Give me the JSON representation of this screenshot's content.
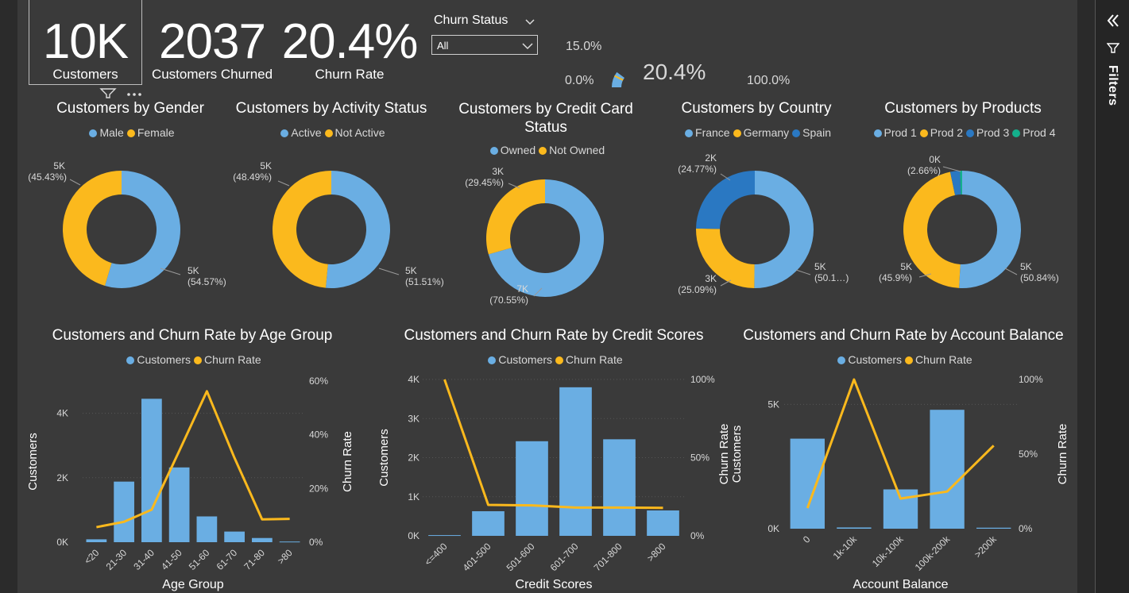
{
  "kpis": {
    "customers": {
      "value": "10K",
      "label": "Customers"
    },
    "churned": {
      "value": "2037",
      "label": "Customers Churned"
    },
    "churn_rate": {
      "value": "20.4%",
      "label": "Churn Rate"
    }
  },
  "slicer": {
    "title": "Churn Status",
    "value": "All"
  },
  "gauge": {
    "min_label": "0.0%",
    "max_label": "100.0%",
    "target_label": "15.0%",
    "value_label": "20.4%",
    "value": 0.204,
    "target": 0.15
  },
  "filters_pane": {
    "label": "Filters"
  },
  "colors": {
    "blue": "#6aaee3",
    "yellow": "#fbb91d",
    "darkblue": "#2a78c2",
    "teal": "#14b08c",
    "bg": "#3a3a3a"
  },
  "chart_data": [
    {
      "type": "pie",
      "title": "Customers by Gender",
      "legend": [
        "Male",
        "Female"
      ],
      "slices": [
        {
          "name": "Male",
          "value": 54.57,
          "label": "5K",
          "pct": "(54.57%)"
        },
        {
          "name": "Female",
          "value": 45.43,
          "label": "5K",
          "pct": "(45.43%)"
        }
      ]
    },
    {
      "type": "pie",
      "title": "Customers by Activity Status",
      "legend": [
        "Active",
        "Not Active"
      ],
      "slices": [
        {
          "name": "Active",
          "value": 51.51,
          "label": "5K",
          "pct": "(51.51%)"
        },
        {
          "name": "Not Active",
          "value": 48.49,
          "label": "5K",
          "pct": "(48.49%)"
        }
      ]
    },
    {
      "type": "pie",
      "title": "Customers by Credit Card Status",
      "legend": [
        "Owned",
        "Not Owned"
      ],
      "slices": [
        {
          "name": "Owned",
          "value": 70.55,
          "label": "7K",
          "pct": "(70.55%)"
        },
        {
          "name": "Not Owned",
          "value": 29.45,
          "label": "3K",
          "pct": "(29.45%)"
        }
      ]
    },
    {
      "type": "pie",
      "title": "Customers by Country",
      "legend": [
        "France",
        "Germany",
        "Spain"
      ],
      "slices": [
        {
          "name": "France",
          "value": 50.14,
          "label": "5K",
          "pct": "(50.1…)"
        },
        {
          "name": "Germany",
          "value": 25.09,
          "label": "3K",
          "pct": "(25.09%)"
        },
        {
          "name": "Spain",
          "value": 24.77,
          "label": "2K",
          "pct": "(24.77%)"
        }
      ]
    },
    {
      "type": "pie",
      "title": "Customers by Products",
      "legend": [
        "Prod 1",
        "Prod 2",
        "Prod 3",
        "Prod 4"
      ],
      "slices": [
        {
          "name": "Prod 1",
          "value": 50.84,
          "label": "5K",
          "pct": "(50.84%)"
        },
        {
          "name": "Prod 2",
          "value": 45.9,
          "label": "5K",
          "pct": "(45.9%)"
        },
        {
          "name": "Prod 3",
          "value": 2.66,
          "label": "0K",
          "pct": "(2.66%)"
        },
        {
          "name": "Prod 4",
          "value": 0.6,
          "label": "",
          "pct": ""
        }
      ]
    },
    {
      "type": "bar",
      "title": "Customers and Churn Rate by Age Group",
      "legend": [
        "Customers",
        "Churn Rate"
      ],
      "xlabel": "Age Group",
      "ylabel": "Customers",
      "y2label": "Churn Rate",
      "categories": [
        "<20",
        "21-30",
        "31-40",
        "41-50",
        "51-60",
        "61-70",
        "71-80",
        ">80"
      ],
      "series": [
        {
          "name": "Customers",
          "values": [
            89,
            1880,
            4450,
            2320,
            800,
            330,
            130,
            20
          ]
        },
        {
          "name": "Churn Rate",
          "values": [
            5.6,
            7.6,
            12.1,
            34.0,
            56.2,
            31.4,
            8.5,
            8.7
          ]
        }
      ],
      "ylim": [
        0,
        5000
      ],
      "y2lim": [
        0,
        60
      ],
      "yticks": [
        {
          "v": 0,
          "t": "0K"
        },
        {
          "v": 2000,
          "t": "2K"
        },
        {
          "v": 4000,
          "t": "4K"
        }
      ],
      "y2ticks": [
        {
          "v": 0,
          "t": "0%"
        },
        {
          "v": 20,
          "t": "20%"
        },
        {
          "v": 40,
          "t": "40%"
        },
        {
          "v": 60,
          "t": "60%"
        }
      ]
    },
    {
      "type": "bar",
      "title": "Customers and Churn Rate by Credit Scores",
      "legend": [
        "Customers",
        "Churn Rate"
      ],
      "xlabel": "Credit Scores",
      "ylabel": "Customers",
      "y2label": "",
      "categories": [
        "<=400",
        "401-500",
        "501-600",
        "601-700",
        "701-800",
        ">800"
      ],
      "series": [
        {
          "name": "Customers",
          "values": [
            19,
            630,
            2420,
            3800,
            2470,
            650
          ]
        },
        {
          "name": "Churn Rate",
          "values": [
            100,
            19.8,
            19.5,
            18.1,
            18.1,
            17.9
          ]
        }
      ],
      "ylim": [
        0,
        4000
      ],
      "y2lim": [
        0,
        100
      ],
      "yticks": [
        {
          "v": 0,
          "t": "0K"
        },
        {
          "v": 1000,
          "t": "1K"
        },
        {
          "v": 2000,
          "t": "2K"
        },
        {
          "v": 3000,
          "t": "3K"
        },
        {
          "v": 4000,
          "t": "4K"
        }
      ],
      "y2ticks": [
        {
          "v": 0,
          "t": "0%"
        },
        {
          "v": 50,
          "t": "50%"
        },
        {
          "v": 100,
          "t": "100%"
        }
      ]
    },
    {
      "type": "bar",
      "title": "Customers and Churn Rate by Account Balance",
      "legend": [
        "Customers",
        "Churn Rate"
      ],
      "xlabel": "Account Balance",
      "ylabel": "Churn Rate Customers",
      "y2label": "Churn Rate",
      "categories": [
        "0",
        "1k-10k",
        "10k-100k",
        "100k-200k",
        ">200k"
      ],
      "series": [
        {
          "name": "Customers",
          "values": [
            3620,
            50,
            1580,
            4780,
            40
          ]
        },
        {
          "name": "Churn Rate",
          "values": [
            13.8,
            100,
            20.2,
            24.9,
            55.7
          ]
        }
      ],
      "ylim": [
        0,
        6000
      ],
      "y2lim": [
        0,
        100
      ],
      "yticks": [
        {
          "v": 0,
          "t": "0K"
        },
        {
          "v": 5000,
          "t": "5K"
        }
      ],
      "y2ticks": [
        {
          "v": 0,
          "t": "0%"
        },
        {
          "v": 50,
          "t": "50%"
        },
        {
          "v": 100,
          "t": "100%"
        }
      ]
    }
  ]
}
